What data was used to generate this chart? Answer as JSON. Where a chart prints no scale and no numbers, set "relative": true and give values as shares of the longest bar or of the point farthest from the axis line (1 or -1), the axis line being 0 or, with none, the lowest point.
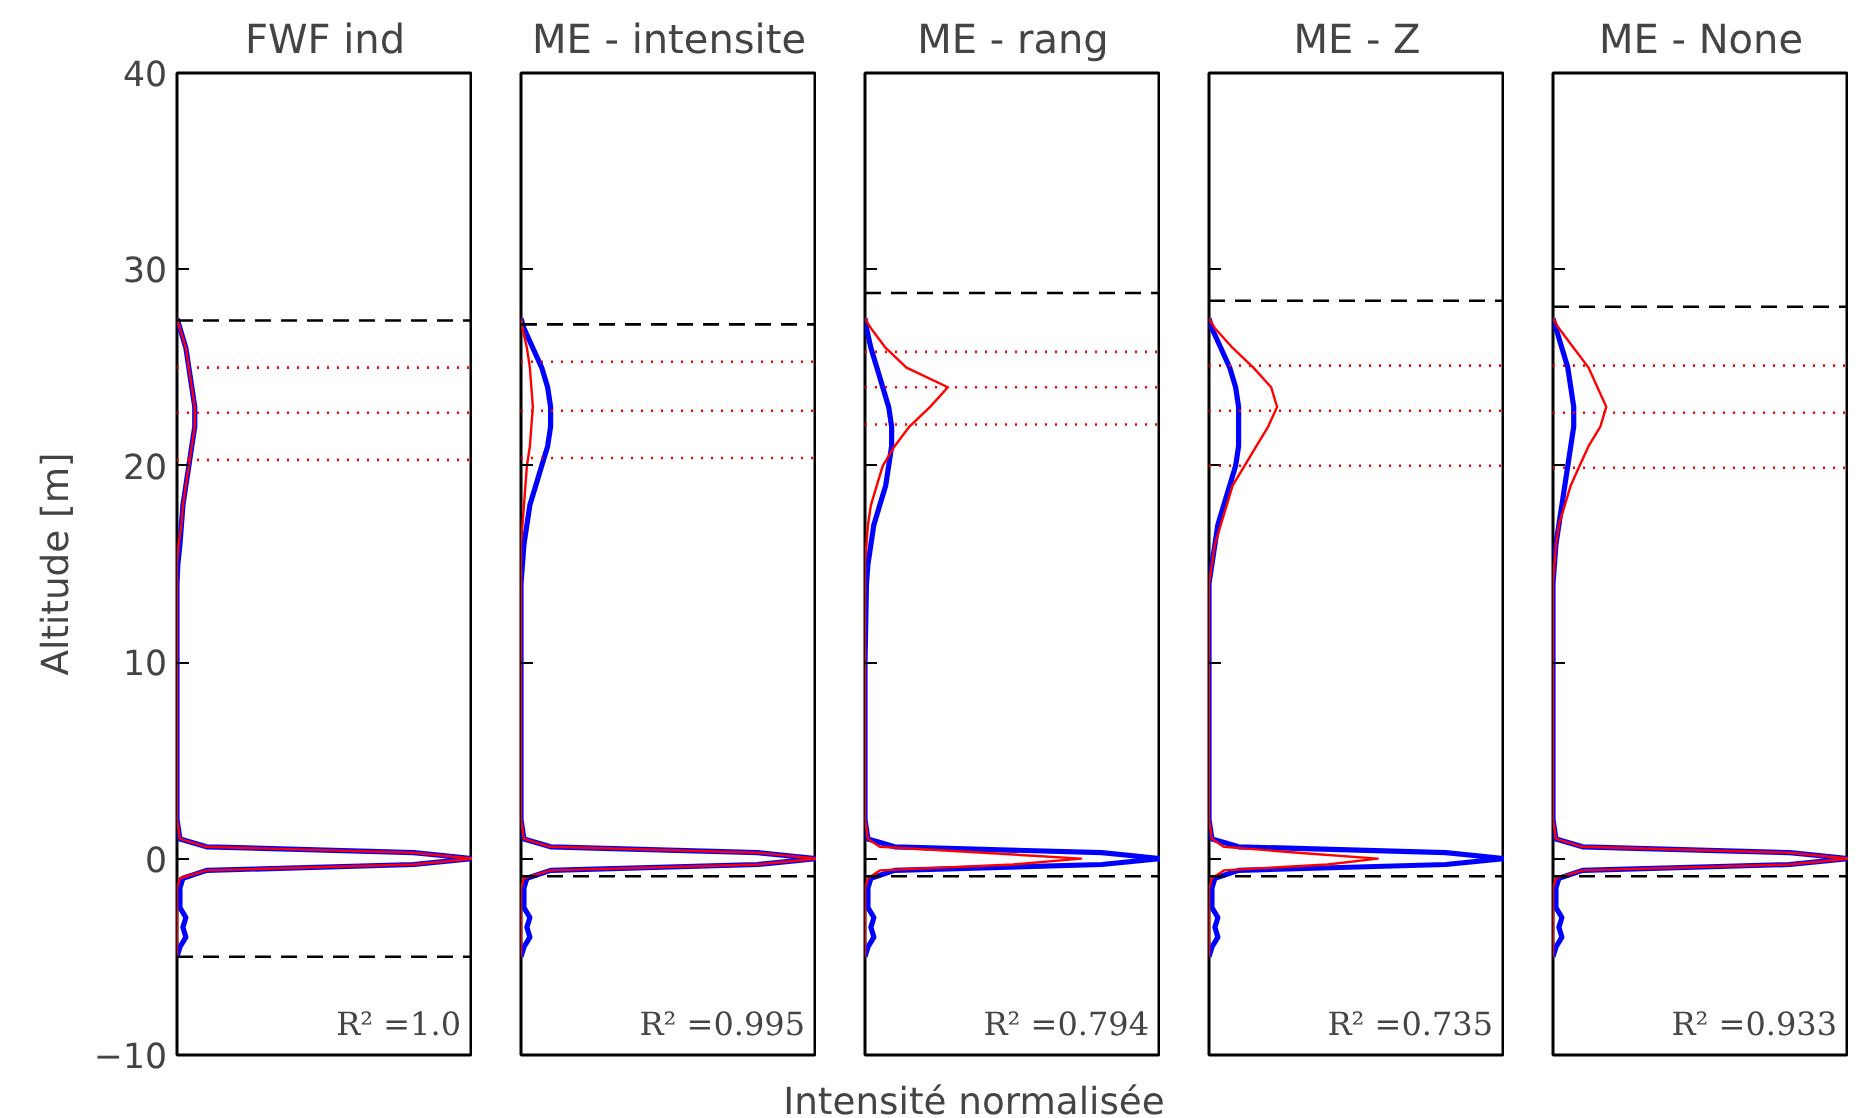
{
  "chart_data": [
    {
      "type": "line",
      "orientation": "horizontal",
      "title": "FWF ind",
      "ylabel": "Altitude [m]",
      "relative": true,
      "ylim": [
        -10,
        40
      ],
      "yticks": [
        {
          "value": -10,
          "label": "−10"
        },
        0,
        10,
        20,
        30,
        40
      ],
      "tick_labels": "y",
      "grid": false,
      "series": [
        {
          "color": "#0000ff",
          "values": [
            0,
            0.01,
            0.03,
            0.02,
            0.03,
            0.01,
            0.01,
            0.01,
            0.02,
            0.1,
            0.8,
            1.0,
            0.8,
            0.1,
            0.01,
            0,
            0,
            0,
            0,
            0.003,
            0.01,
            0.015,
            0.02,
            0.03,
            0.04,
            0.05,
            0.06,
            0.06,
            0.05,
            0.04,
            0.03,
            0.01,
            0
          ],
          "x": [
            -5,
            -4.5,
            -4,
            -3.5,
            -3,
            -2.5,
            -2,
            -1.5,
            -1,
            -0.6,
            -0.3,
            0,
            0.3,
            0.6,
            1,
            2,
            5,
            10,
            14,
            15,
            16,
            17,
            18,
            19,
            20,
            21,
            22,
            23,
            24,
            25,
            26,
            27,
            27.5
          ]
        },
        {
          "color": "#ff0000",
          "values": [
            0,
            0,
            0,
            0,
            0,
            0,
            0,
            0,
            0.01,
            0.1,
            0.8,
            1.0,
            0.8,
            0.1,
            0.01,
            0,
            0,
            0,
            0,
            0,
            0.005,
            0.015,
            0.02,
            0.03,
            0.04,
            0.05,
            0.06,
            0.06,
            0.05,
            0.04,
            0.03,
            0.01,
            0
          ],
          "x": [
            -5,
            -4.5,
            -4,
            -3.5,
            -3,
            -2.5,
            -2,
            -1.5,
            -1,
            -0.6,
            -0.3,
            0,
            0.3,
            0.6,
            1,
            2,
            5,
            10,
            14,
            15,
            16,
            17,
            18,
            19,
            20,
            21,
            22,
            23,
            24,
            25,
            26,
            27,
            27.5
          ]
        }
      ],
      "ref_lines": [
        {
          "axis": "y",
          "value": 27.4,
          "color": "#000000",
          "line_style": "dashed"
        },
        {
          "axis": "y",
          "value": -5,
          "color": "#000000",
          "line_style": "dashed"
        },
        {
          "axis": "y",
          "value": 25.0,
          "color": "#ff0000",
          "line_style": "dotted"
        },
        {
          "axis": "y",
          "value": 22.7,
          "color": "#ff0000",
          "line_style": "dotted"
        },
        {
          "axis": "y",
          "value": 20.3,
          "color": "#ff0000",
          "line_style": "dotted"
        }
      ],
      "annotations": [
        "R² =1.0"
      ]
    },
    {
      "type": "line",
      "orientation": "horizontal",
      "title": "ME - intensite",
      "relative": true,
      "ylim": [
        -10,
        40
      ],
      "yticks": [
        -10,
        0,
        10,
        20,
        30,
        40
      ],
      "tick_labels": false,
      "grid": false,
      "series": [
        {
          "color": "#0000ff",
          "values": [
            0,
            0.01,
            0.03,
            0.02,
            0.03,
            0.01,
            0.01,
            0.01,
            0.02,
            0.1,
            0.8,
            1.0,
            0.8,
            0.1,
            0.01,
            0,
            0,
            0,
            0,
            0.005,
            0.01,
            0.02,
            0.03,
            0.05,
            0.07,
            0.09,
            0.1,
            0.1,
            0.09,
            0.07,
            0.04,
            0.01,
            0
          ],
          "x": [
            -5,
            -4.5,
            -4,
            -3.5,
            -3,
            -2.5,
            -2,
            -1.5,
            -1,
            -0.6,
            -0.3,
            0,
            0.3,
            0.6,
            1,
            2,
            5,
            10,
            14,
            15,
            16,
            17,
            18,
            19,
            20,
            21,
            22,
            23,
            24,
            25,
            26,
            27,
            27.5
          ]
        },
        {
          "color": "#ff0000",
          "values": [
            0,
            0,
            0,
            0,
            0,
            0,
            0,
            0,
            0.01,
            0.1,
            0.8,
            1.0,
            0.8,
            0.1,
            0.01,
            0,
            0,
            0,
            0,
            0,
            0,
            0.005,
            0.01,
            0.015,
            0.02,
            0.03,
            0.035,
            0.04,
            0.035,
            0.03,
            0.02,
            0.005,
            0
          ],
          "x": [
            -5,
            -4.5,
            -4,
            -3.5,
            -3,
            -2.5,
            -2,
            -1.5,
            -1,
            -0.6,
            -0.3,
            0,
            0.3,
            0.6,
            1,
            2,
            5,
            10,
            14,
            15,
            16,
            17,
            18,
            19,
            20,
            21,
            22,
            23,
            24,
            25,
            26,
            27,
            27.5
          ]
        }
      ],
      "ref_lines": [
        {
          "axis": "y",
          "value": 27.2,
          "color": "#000000",
          "line_style": "dashed"
        },
        {
          "axis": "y",
          "value": -0.9,
          "color": "#000000",
          "line_style": "dashed"
        },
        {
          "axis": "y",
          "value": 25.3,
          "color": "#ff0000",
          "line_style": "dotted"
        },
        {
          "axis": "y",
          "value": 22.8,
          "color": "#ff0000",
          "line_style": "dotted"
        },
        {
          "axis": "y",
          "value": 20.4,
          "color": "#ff0000",
          "line_style": "dotted"
        }
      ],
      "annotations": [
        "R² =0.995"
      ]
    },
    {
      "type": "line",
      "orientation": "horizontal",
      "title": "ME - rang",
      "xlabel": "Intensité normalisée",
      "relative": true,
      "ylim": [
        -10,
        40
      ],
      "yticks": [
        -10,
        0,
        10,
        20,
        30,
        40
      ],
      "tick_labels": false,
      "grid": false,
      "series": [
        {
          "color": "#0000ff",
          "values": [
            0,
            0.01,
            0.03,
            0.02,
            0.03,
            0.01,
            0.01,
            0.01,
            0.02,
            0.1,
            0.8,
            1.0,
            0.8,
            0.1,
            0.01,
            0,
            0,
            0,
            0.005,
            0.01,
            0.02,
            0.03,
            0.05,
            0.07,
            0.08,
            0.09,
            0.09,
            0.08,
            0.06,
            0.04,
            0.02,
            0.005,
            0
          ],
          "x": [
            -5,
            -4.5,
            -4,
            -3.5,
            -3,
            -2.5,
            -2,
            -1.5,
            -1,
            -0.6,
            -0.3,
            0,
            0.3,
            0.6,
            1,
            2,
            5,
            10,
            14,
            15,
            16,
            17,
            18,
            19,
            20,
            21,
            22,
            23,
            24,
            25,
            26,
            27,
            27.5
          ]
        },
        {
          "color": "#ff0000",
          "values": [
            0,
            0,
            0,
            0,
            0,
            0,
            0,
            0,
            0.01,
            0.05,
            0.5,
            0.73,
            0.4,
            0.05,
            0.01,
            0,
            0,
            0,
            0,
            0,
            0.005,
            0.01,
            0.02,
            0.04,
            0.06,
            0.1,
            0.15,
            0.22,
            0.28,
            0.14,
            0.07,
            0.02,
            0
          ],
          "x": [
            -5,
            -4.5,
            -4,
            -3.5,
            -3,
            -2.5,
            -2,
            -1.5,
            -1,
            -0.6,
            -0.3,
            0,
            0.3,
            0.6,
            1,
            2,
            5,
            10,
            14,
            15,
            16,
            17,
            18,
            19,
            20,
            21,
            22,
            23,
            24,
            25,
            26,
            27,
            27.5
          ]
        }
      ],
      "ref_lines": [
        {
          "axis": "y",
          "value": 28.8,
          "color": "#000000",
          "line_style": "dashed"
        },
        {
          "axis": "y",
          "value": -0.9,
          "color": "#000000",
          "line_style": "dashed"
        },
        {
          "axis": "y",
          "value": 25.8,
          "color": "#ff0000",
          "line_style": "dotted"
        },
        {
          "axis": "y",
          "value": 24.0,
          "color": "#ff0000",
          "line_style": "dotted"
        },
        {
          "axis": "y",
          "value": 22.1,
          "color": "#ff0000",
          "line_style": "dotted"
        }
      ],
      "annotations": [
        "R² =0.794"
      ]
    },
    {
      "type": "line",
      "orientation": "horizontal",
      "title": "ME - Z",
      "relative": true,
      "ylim": [
        -10,
        40
      ],
      "yticks": [
        -10,
        0,
        10,
        20,
        30,
        40
      ],
      "tick_labels": false,
      "grid": false,
      "series": [
        {
          "color": "#0000ff",
          "values": [
            0,
            0.01,
            0.03,
            0.02,
            0.03,
            0.01,
            0.01,
            0.01,
            0.02,
            0.1,
            0.8,
            1.0,
            0.8,
            0.1,
            0.01,
            0,
            0,
            0,
            0,
            0.01,
            0.02,
            0.03,
            0.05,
            0.07,
            0.09,
            0.1,
            0.1,
            0.1,
            0.09,
            0.07,
            0.04,
            0.01,
            0
          ],
          "x": [
            -5,
            -4.5,
            -4,
            -3.5,
            -3,
            -2.5,
            -2,
            -1.5,
            -1,
            -0.6,
            -0.3,
            0,
            0.3,
            0.6,
            1,
            2,
            5,
            10,
            14,
            15,
            16,
            17,
            18,
            19,
            20,
            21,
            22,
            23,
            24,
            25,
            26,
            27,
            27.5
          ]
        },
        {
          "color": "#ff0000",
          "values": [
            0,
            0,
            0,
            0,
            0,
            0,
            0,
            0,
            0.01,
            0.05,
            0.4,
            0.57,
            0.3,
            0.05,
            0.01,
            0,
            0,
            0,
            0,
            0.01,
            0.02,
            0.04,
            0.06,
            0.08,
            0.12,
            0.16,
            0.2,
            0.23,
            0.21,
            0.15,
            0.08,
            0.02,
            0
          ],
          "x": [
            -5,
            -4.5,
            -4,
            -3.5,
            -3,
            -2.5,
            -2,
            -1.5,
            -1,
            -0.6,
            -0.3,
            0,
            0.3,
            0.6,
            1,
            2,
            5,
            10,
            14,
            15,
            16,
            17,
            18,
            19,
            20,
            21,
            22,
            23,
            24,
            25,
            26,
            27,
            27.5
          ]
        }
      ],
      "ref_lines": [
        {
          "axis": "y",
          "value": 28.4,
          "color": "#000000",
          "line_style": "dashed"
        },
        {
          "axis": "y",
          "value": -0.9,
          "color": "#000000",
          "line_style": "dashed"
        },
        {
          "axis": "y",
          "value": 25.1,
          "color": "#ff0000",
          "line_style": "dotted"
        },
        {
          "axis": "y",
          "value": 22.8,
          "color": "#ff0000",
          "line_style": "dotted"
        },
        {
          "axis": "y",
          "value": 20.0,
          "color": "#ff0000",
          "line_style": "dotted"
        }
      ],
      "annotations": [
        "R² =0.735"
      ]
    },
    {
      "type": "line",
      "orientation": "horizontal",
      "title": "ME - None",
      "relative": true,
      "ylim": [
        -10,
        40
      ],
      "yticks": [
        -10,
        0,
        10,
        20,
        30,
        40
      ],
      "tick_labels": false,
      "grid": false,
      "series": [
        {
          "color": "#0000ff",
          "values": [
            0,
            0.01,
            0.03,
            0.02,
            0.03,
            0.01,
            0.01,
            0.01,
            0.02,
            0.1,
            0.8,
            1.0,
            0.8,
            0.1,
            0.01,
            0,
            0,
            0,
            0,
            0.005,
            0.01,
            0.02,
            0.03,
            0.04,
            0.05,
            0.06,
            0.07,
            0.07,
            0.06,
            0.05,
            0.03,
            0.01,
            0
          ],
          "x": [
            -5,
            -4.5,
            -4,
            -3.5,
            -3,
            -2.5,
            -2,
            -1.5,
            -1,
            -0.6,
            -0.3,
            0,
            0.3,
            0.6,
            1,
            2,
            5,
            10,
            14,
            15,
            16,
            17,
            18,
            19,
            20,
            21,
            22,
            23,
            24,
            25,
            26,
            27,
            27.5
          ]
        },
        {
          "color": "#ff0000",
          "values": [
            0,
            0,
            0,
            0,
            0,
            0,
            0,
            0,
            0.01,
            0.1,
            0.8,
            1.0,
            0.8,
            0.1,
            0.01,
            0,
            0,
            0,
            0,
            0.005,
            0.01,
            0.02,
            0.04,
            0.06,
            0.09,
            0.12,
            0.16,
            0.18,
            0.15,
            0.12,
            0.07,
            0.02,
            0
          ],
          "x": [
            -5,
            -4.5,
            -4,
            -3.5,
            -3,
            -2.5,
            -2,
            -1.5,
            -1,
            -0.6,
            -0.3,
            0,
            0.3,
            0.6,
            1,
            2,
            5,
            10,
            14,
            15,
            16,
            17,
            18,
            19,
            20,
            21,
            22,
            23,
            24,
            25,
            26,
            27,
            27.5
          ]
        }
      ],
      "ref_lines": [
        {
          "axis": "y",
          "value": 28.1,
          "color": "#000000",
          "line_style": "dashed"
        },
        {
          "axis": "y",
          "value": -0.9,
          "color": "#000000",
          "line_style": "dashed"
        },
        {
          "axis": "y",
          "value": 25.1,
          "color": "#ff0000",
          "line_style": "dotted"
        },
        {
          "axis": "y",
          "value": 22.7,
          "color": "#ff0000",
          "line_style": "dotted"
        },
        {
          "axis": "y",
          "value": 19.9,
          "color": "#ff0000",
          "line_style": "dotted"
        }
      ],
      "annotations": [
        "R² =0.933"
      ]
    }
  ]
}
